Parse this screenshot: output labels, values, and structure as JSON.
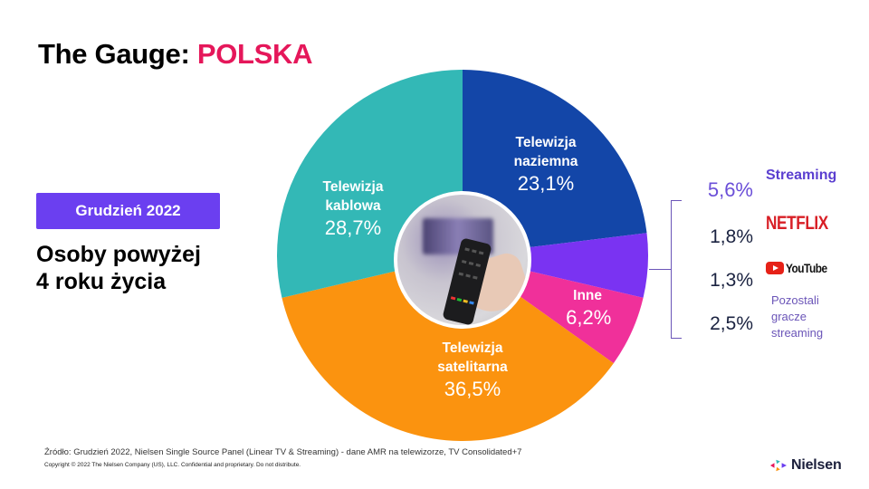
{
  "header": {
    "title_prefix": "The Gauge: ",
    "title_accent": "POLSKA"
  },
  "sidebar": {
    "period": "Grudzień 2022",
    "audience_line1": "Osoby powyżej",
    "audience_line2": "4 roku życia"
  },
  "colors": {
    "accent_pink": "#e5175a",
    "badge_purple": "#6b3ff0",
    "naziemna": "#1346a8",
    "streaming": "#7a33f2",
    "inne": "#f0309a",
    "satelitarna": "#fb930f",
    "kablowa": "#33b8b6"
  },
  "chart_data": {
    "type": "pie",
    "title": "The Gauge: POLSKA",
    "subtitle": "Grudzień 2022 — Osoby powyżej 4 roku życia",
    "start_angle": "12 o'clock, clockwise",
    "categories": [
      "Telewizja naziemna",
      "Streaming",
      "Inne",
      "Telewizja satelitarna",
      "Telewizja kablowa"
    ],
    "values": [
      23.1,
      5.6,
      6.2,
      36.5,
      28.7
    ],
    "labels": [
      "23,1%",
      "5,6%",
      "6,2%",
      "36,5%",
      "28,7%"
    ],
    "colors": [
      "#1346a8",
      "#7a33f2",
      "#f0309a",
      "#fb930f",
      "#33b8b6"
    ],
    "streaming_breakdown": {
      "title": "Streaming",
      "total": "5,6%",
      "items": [
        {
          "name": "Netflix",
          "value": 1.8,
          "label": "1,8%"
        },
        {
          "name": "YouTube",
          "value": 1.3,
          "label": "1,3%"
        },
        {
          "name": "Pozostali gracze streaming",
          "value": 2.5,
          "label": "2,5%"
        }
      ]
    }
  },
  "slices": {
    "naziemna": {
      "name1": "Telewizja",
      "name2": "naziemna",
      "pct": "23,1%"
    },
    "kablowa": {
      "name1": "Telewizja",
      "name2": "kablowa",
      "pct": "28,7%"
    },
    "satelitarna": {
      "name1": "Telewizja",
      "name2": "satelitarna",
      "pct": "36,5%"
    },
    "inne": {
      "name1": "Inne",
      "pct": "6,2%"
    }
  },
  "streaming_panel": {
    "heading": "Streaming",
    "total_pct": "5,6%",
    "netflix_pct": "1,8%",
    "netflix_logo": "NETFLIX",
    "youtube_pct": "1,3%",
    "youtube_logo": "YouTube",
    "others_pct": "2,5%",
    "others_line1": "Pozostali",
    "others_line2": "gracze",
    "others_line3": "streaming"
  },
  "footer": {
    "source": "Źródło: Grudzień 2022, Nielsen Single Source Panel (Linear TV & Streaming) - dane AMR na telewizorze, TV Consolidated+7",
    "copyright": "Copyright © 2022 The Nielsen Company (US), LLC. Confidential and proprietary. Do not distribute.",
    "brand": "Nielsen"
  }
}
